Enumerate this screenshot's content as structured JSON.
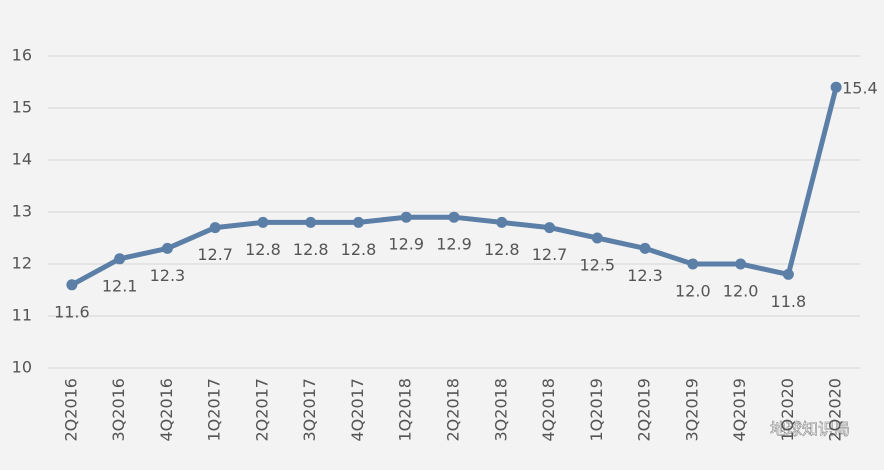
{
  "chart_data": {
    "type": "line",
    "categories": [
      "2Q2016",
      "3Q2016",
      "4Q2016",
      "1Q2017",
      "2Q2017",
      "3Q2017",
      "4Q2017",
      "1Q2018",
      "2Q2018",
      "3Q2018",
      "4Q2018",
      "1Q2019",
      "2Q2019",
      "3Q2019",
      "4Q2019",
      "1Q2020",
      "2Q2020"
    ],
    "values": [
      11.6,
      12.1,
      12.3,
      12.7,
      12.8,
      12.8,
      12.8,
      12.9,
      12.9,
      12.8,
      12.7,
      12.5,
      12.3,
      12.0,
      12.0,
      11.8,
      15.4
    ],
    "value_labels": [
      "11.6",
      "12.1",
      "12.3",
      "12.7",
      "12.8",
      "12.8",
      "12.8",
      "12.9",
      "12.9",
      "12.8",
      "12.7",
      "12.5",
      "12.3",
      "12.0",
      "12.0",
      "11.8",
      "15.4"
    ],
    "color": "#5b7fa6",
    "ylim": [
      10,
      16
    ],
    "yticks": [
      10,
      11,
      12,
      13,
      14,
      15,
      16
    ],
    "grid": true,
    "watermark": "地球知识局"
  }
}
